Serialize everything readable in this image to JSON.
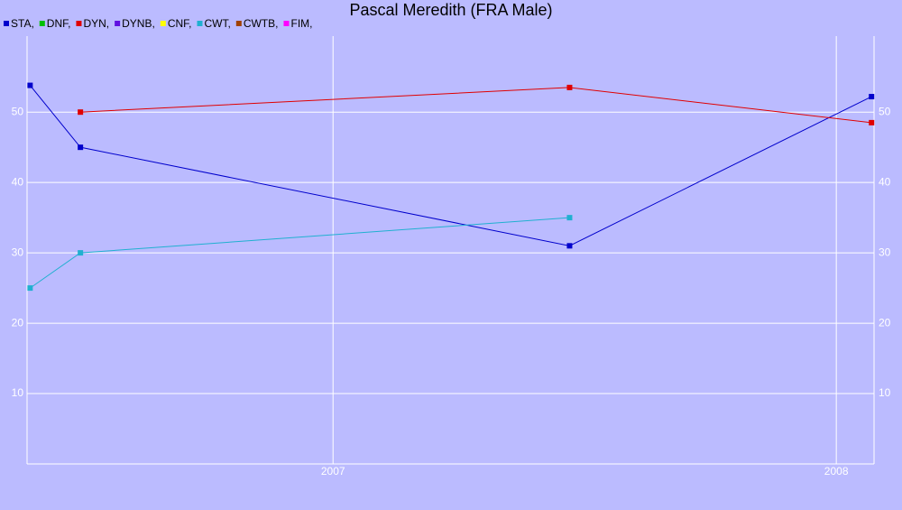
{
  "chart_data": {
    "type": "line",
    "title": "Pascal Meredith (FRA Male)",
    "x": [
      2006.398,
      2006.498,
      2007.47,
      2008.07
    ],
    "series": [
      {
        "name": "STA,",
        "color": "#0000cc",
        "values": [
          53.8,
          45,
          31,
          52.2
        ]
      },
      {
        "name": "DNF,",
        "color": "#00c000",
        "values": [
          null,
          null,
          null,
          null
        ]
      },
      {
        "name": "DYN,",
        "color": "#e00000",
        "values": [
          null,
          50,
          53.5,
          48.5
        ]
      },
      {
        "name": "DYNB,",
        "color": "#6010e0",
        "values": [
          null,
          null,
          null,
          null
        ]
      },
      {
        "name": "CNF,",
        "color": "#ffff00",
        "values": [
          null,
          null,
          null,
          null
        ]
      },
      {
        "name": "CWT,",
        "color": "#20b0d0",
        "values": [
          25,
          30,
          35,
          null
        ]
      },
      {
        "name": "CWTB,",
        "color": "#a04000",
        "values": [
          null,
          null,
          null,
          null
        ]
      },
      {
        "name": "FIM,",
        "color": "#ff00ff",
        "values": [
          null,
          null,
          null,
          null
        ]
      }
    ],
    "xlim": [
      2006.392,
      2008.075
    ],
    "xticks": [
      2007,
      2008
    ],
    "ylim": [
      0,
      60.8
    ],
    "yticks": [
      10,
      20,
      30,
      40,
      50
    ],
    "grid": true
  }
}
